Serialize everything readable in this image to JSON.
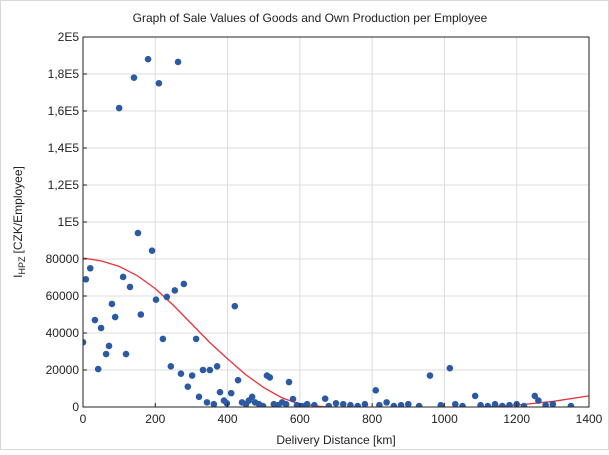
{
  "chart_data": {
    "type": "scatter",
    "title": "Graph of Sale Values of Goods and Own Production per Employee",
    "x_label": "Delivery Distance [km]",
    "y_label": {
      "main": "I",
      "subscript": "HPZ",
      "unit": "[CZK/Employee]"
    },
    "xlim": [
      0,
      1400
    ],
    "xticks": [
      0,
      200,
      400,
      600,
      800,
      1000,
      1200,
      1400
    ],
    "ylim": [
      0,
      200000
    ],
    "yticks": [
      0,
      20000,
      40000,
      60000,
      80000,
      {
        "value": 100000,
        "label": "1E5"
      },
      {
        "value": 120000,
        "label": "1,2E5"
      },
      {
        "value": 140000,
        "label": "1,4E5"
      },
      {
        "value": 160000,
        "label": "1,6E5"
      },
      {
        "value": 180000,
        "label": "1,8E5"
      },
      {
        "value": 200000,
        "label": "2E5"
      }
    ],
    "grid": true,
    "points": {
      "color": "#2b5aa3",
      "x": [
        0,
        8,
        20,
        33,
        42,
        50,
        64,
        72,
        80,
        89,
        100,
        111,
        119,
        130,
        141,
        152,
        160,
        180,
        191,
        202,
        210,
        221,
        232,
        243,
        254,
        263,
        271,
        279,
        290,
        302,
        313,
        321,
        332,
        343,
        351,
        362,
        371,
        379,
        390,
        398,
        410,
        420,
        429,
        440,
        451,
        459,
        468,
        476,
        487,
        498,
        509,
        517,
        528,
        540,
        551,
        562,
        570,
        581,
        592,
        606,
        620,
        640,
        670,
        680,
        700,
        720,
        740,
        760,
        780,
        810,
        820,
        840,
        860,
        880,
        900,
        930,
        960,
        990,
        1015,
        1030,
        1050,
        1085,
        1100,
        1120,
        1140,
        1160,
        1180,
        1200,
        1220,
        1250,
        1260,
        1280,
        1300,
        1350
      ],
      "values": [
        35000,
        69000,
        75000,
        47000,
        20500,
        42700,
        28600,
        33000,
        55700,
        48600,
        161600,
        70300,
        28600,
        64900,
        178000,
        94000,
        50000,
        188000,
        84500,
        58000,
        175000,
        36800,
        59500,
        22000,
        63000,
        186500,
        18000,
        66500,
        11000,
        17000,
        36800,
        5500,
        20000,
        2500,
        20000,
        1500,
        22000,
        8000,
        3500,
        2000,
        7500,
        54500,
        14500,
        2500,
        1500,
        3500,
        5500,
        2500,
        1500,
        500,
        17000,
        16000,
        1500,
        1000,
        2500,
        1500,
        13500,
        4300,
        1000,
        500,
        1500,
        1000,
        4500,
        500,
        2000,
        1500,
        1000,
        500,
        1500,
        9000,
        1000,
        2500,
        500,
        1000,
        1500,
        500,
        17000,
        1000,
        21000,
        1500,
        500,
        6000,
        1000,
        500,
        1500,
        500,
        1000,
        1500,
        500,
        6000,
        3500,
        1000,
        1500,
        500
      ]
    },
    "curve": {
      "color": "#e8323c",
      "x": [
        0,
        50,
        100,
        150,
        200,
        250,
        300,
        350,
        400,
        450,
        500,
        550,
        600,
        700,
        800,
        900,
        1000,
        1100,
        1200,
        1300,
        1400
      ],
      "values": [
        80500,
        79000,
        76000,
        71000,
        64000,
        55000,
        45000,
        35000,
        26000,
        17500,
        10500,
        5000,
        1500,
        -500,
        -500,
        -500,
        -200,
        0,
        1000,
        3000,
        6000
      ]
    }
  }
}
